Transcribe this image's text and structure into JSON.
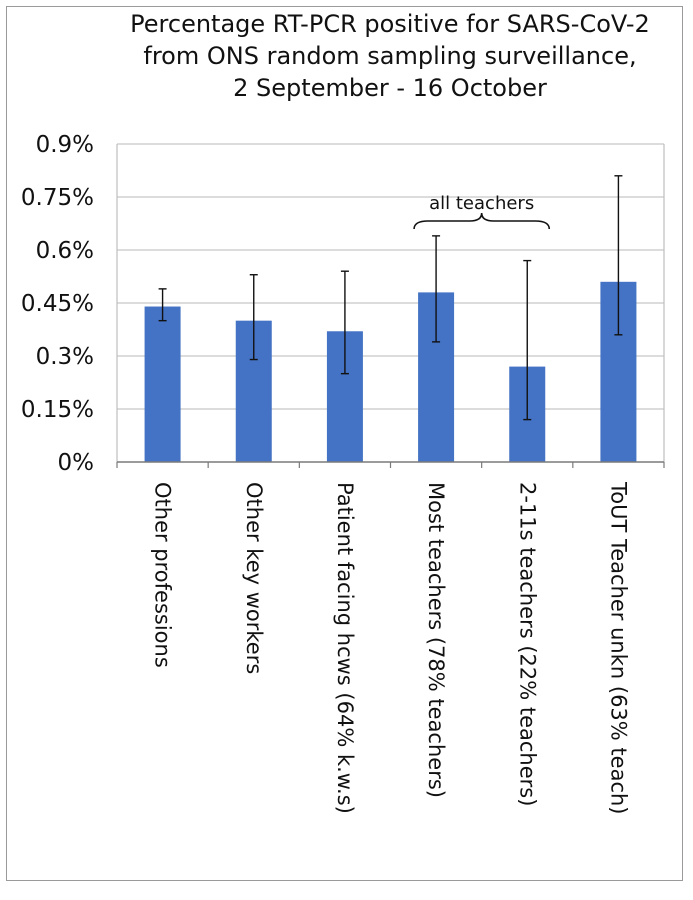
{
  "chart_data": {
    "type": "bar",
    "title_lines": [
      "Percentage RT-PCR positive for SARS-CoV-2",
      "from ONS random sampling surveillance,",
      "2 September - 16 October"
    ],
    "categories": [
      "Other professions",
      "Other key workers",
      "Patient facing hcws (64% k.w.s)",
      "Most teachers (78% teachers)",
      "2-11s teachers (22% teachers)",
      "ToUT Teacher unkn (63% teach)"
    ],
    "values": [
      0.44,
      0.4,
      0.37,
      0.48,
      0.27,
      0.51
    ],
    "error_low": [
      0.4,
      0.29,
      0.25,
      0.34,
      0.12,
      0.36
    ],
    "error_high": [
      0.49,
      0.53,
      0.54,
      0.64,
      0.57,
      0.81
    ],
    "ylim": [
      0,
      0.9
    ],
    "yticks": [
      0,
      0.15,
      0.3,
      0.45,
      0.6,
      0.75,
      0.9
    ],
    "ytick_labels": [
      "0%",
      "0.15%",
      "0.3%",
      "0.45%",
      "0.6%",
      "0.75%",
      "0.9%"
    ],
    "grid": true,
    "bar_color": "#4472c4",
    "annotation": {
      "text": "all teachers",
      "spans_categories": [
        3,
        4
      ]
    }
  }
}
